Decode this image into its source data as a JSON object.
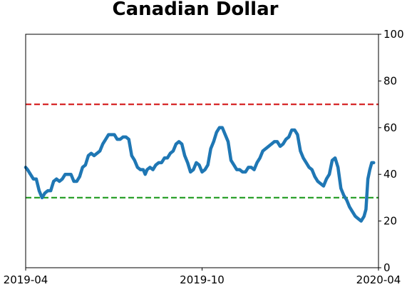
{
  "chart_data": {
    "type": "line",
    "title": "Canadian Dollar",
    "xlabel": "",
    "ylabel": "",
    "x_range": [
      "2019-04-01",
      "2020-04-01"
    ],
    "x_ticks": [
      {
        "date": "2019-04-01",
        "label": "2019-04"
      },
      {
        "date": "2019-10-01",
        "label": "2019-10"
      },
      {
        "date": "2020-04-01",
        "label": "2020-04"
      }
    ],
    "ylim": [
      0,
      100
    ],
    "y_ticks": [
      0,
      20,
      40,
      60,
      80,
      100
    ],
    "y_axis_side": "right",
    "grid": false,
    "reference_lines": [
      {
        "y": 70,
        "color": "#d62728",
        "style": "dashed"
      },
      {
        "y": 30,
        "color": "#2ca02c",
        "style": "dashed"
      }
    ],
    "series": [
      {
        "color": "#1f77b4",
        "points": [
          [
            "2019-04-01",
            43
          ],
          [
            "2019-04-03",
            42
          ],
          [
            "2019-04-06",
            40
          ],
          [
            "2019-04-09",
            38
          ],
          [
            "2019-04-12",
            38
          ],
          [
            "2019-04-15",
            33
          ],
          [
            "2019-04-18",
            30
          ],
          [
            "2019-04-21",
            32
          ],
          [
            "2019-04-24",
            33
          ],
          [
            "2019-04-27",
            33
          ],
          [
            "2019-04-30",
            37
          ],
          [
            "2019-05-03",
            38
          ],
          [
            "2019-05-06",
            37
          ],
          [
            "2019-05-09",
            38
          ],
          [
            "2019-05-12",
            40
          ],
          [
            "2019-05-15",
            40
          ],
          [
            "2019-05-18",
            40
          ],
          [
            "2019-05-21",
            37
          ],
          [
            "2019-05-24",
            37
          ],
          [
            "2019-05-27",
            39
          ],
          [
            "2019-05-30",
            43
          ],
          [
            "2019-06-02",
            44
          ],
          [
            "2019-06-05",
            48
          ],
          [
            "2019-06-08",
            49
          ],
          [
            "2019-06-11",
            48
          ],
          [
            "2019-06-14",
            49
          ],
          [
            "2019-06-17",
            50
          ],
          [
            "2019-06-20",
            53
          ],
          [
            "2019-06-23",
            55
          ],
          [
            "2019-06-26",
            57
          ],
          [
            "2019-06-29",
            57
          ],
          [
            "2019-07-02",
            57
          ],
          [
            "2019-07-05",
            55
          ],
          [
            "2019-07-08",
            55
          ],
          [
            "2019-07-11",
            56
          ],
          [
            "2019-07-14",
            56
          ],
          [
            "2019-07-17",
            55
          ],
          [
            "2019-07-20",
            48
          ],
          [
            "2019-07-23",
            46
          ],
          [
            "2019-07-26",
            43
          ],
          [
            "2019-07-29",
            42
          ],
          [
            "2019-08-01",
            42
          ],
          [
            "2019-08-03",
            40
          ],
          [
            "2019-08-05",
            42
          ],
          [
            "2019-08-08",
            43
          ],
          [
            "2019-08-11",
            42
          ],
          [
            "2019-08-14",
            44
          ],
          [
            "2019-08-17",
            45
          ],
          [
            "2019-08-20",
            45
          ],
          [
            "2019-08-23",
            47
          ],
          [
            "2019-08-26",
            47
          ],
          [
            "2019-08-29",
            49
          ],
          [
            "2019-09-01",
            50
          ],
          [
            "2019-09-04",
            53
          ],
          [
            "2019-09-07",
            54
          ],
          [
            "2019-09-10",
            53
          ],
          [
            "2019-09-13",
            48
          ],
          [
            "2019-09-16",
            45
          ],
          [
            "2019-09-19",
            41
          ],
          [
            "2019-09-22",
            42
          ],
          [
            "2019-09-25",
            45
          ],
          [
            "2019-09-28",
            44
          ],
          [
            "2019-10-01",
            41
          ],
          [
            "2019-10-04",
            42
          ],
          [
            "2019-10-07",
            44
          ],
          [
            "2019-10-10",
            51
          ],
          [
            "2019-10-13",
            54
          ],
          [
            "2019-10-16",
            58
          ],
          [
            "2019-10-19",
            60
          ],
          [
            "2019-10-22",
            60
          ],
          [
            "2019-10-25",
            57
          ],
          [
            "2019-10-28",
            54
          ],
          [
            "2019-10-31",
            46
          ],
          [
            "2019-11-03",
            44
          ],
          [
            "2019-11-06",
            42
          ],
          [
            "2019-11-09",
            42
          ],
          [
            "2019-11-12",
            41
          ],
          [
            "2019-11-15",
            41
          ],
          [
            "2019-11-18",
            43
          ],
          [
            "2019-11-21",
            43
          ],
          [
            "2019-11-24",
            42
          ],
          [
            "2019-11-27",
            45
          ],
          [
            "2019-11-30",
            47
          ],
          [
            "2019-12-03",
            50
          ],
          [
            "2019-12-06",
            51
          ],
          [
            "2019-12-09",
            52
          ],
          [
            "2019-12-12",
            53
          ],
          [
            "2019-12-15",
            54
          ],
          [
            "2019-12-18",
            54
          ],
          [
            "2019-12-21",
            52
          ],
          [
            "2019-12-24",
            53
          ],
          [
            "2019-12-27",
            55
          ],
          [
            "2019-12-30",
            56
          ],
          [
            "2020-01-02",
            59
          ],
          [
            "2020-01-05",
            59
          ],
          [
            "2020-01-08",
            57
          ],
          [
            "2020-01-11",
            50
          ],
          [
            "2020-01-14",
            47
          ],
          [
            "2020-01-17",
            45
          ],
          [
            "2020-01-20",
            43
          ],
          [
            "2020-01-23",
            42
          ],
          [
            "2020-01-26",
            39
          ],
          [
            "2020-01-29",
            37
          ],
          [
            "2020-02-01",
            36
          ],
          [
            "2020-02-04",
            35
          ],
          [
            "2020-02-07",
            38
          ],
          [
            "2020-02-10",
            40
          ],
          [
            "2020-02-13",
            46
          ],
          [
            "2020-02-16",
            47
          ],
          [
            "2020-02-19",
            43
          ],
          [
            "2020-02-22",
            34
          ],
          [
            "2020-02-25",
            31
          ],
          [
            "2020-02-28",
            29
          ],
          [
            "2020-03-02",
            26
          ],
          [
            "2020-03-05",
            24
          ],
          [
            "2020-03-08",
            22
          ],
          [
            "2020-03-11",
            21
          ],
          [
            "2020-03-14",
            20
          ],
          [
            "2020-03-17",
            22
          ],
          [
            "2020-03-19",
            25
          ],
          [
            "2020-03-21",
            38
          ],
          [
            "2020-03-23",
            42
          ],
          [
            "2020-03-25",
            45
          ],
          [
            "2020-03-27",
            45
          ]
        ]
      }
    ]
  }
}
